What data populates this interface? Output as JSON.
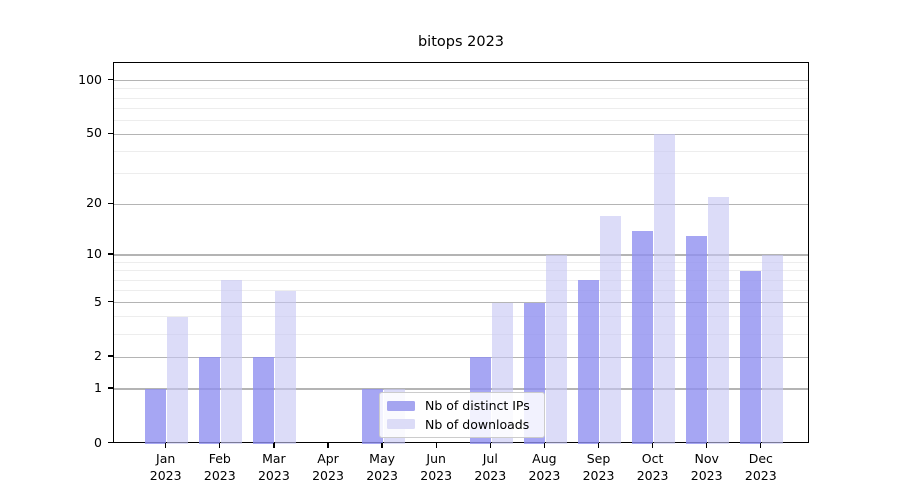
{
  "figure": {
    "background_color": "#ffffff"
  },
  "colors": {
    "ips_bar": "#a5a5f0",
    "downloads_bar": "#dcdcf7",
    "ips_bar_rgba": "rgba(144,144,240,0.8)",
    "downloads_bar_rgba": "rgba(198,198,243,0.62)",
    "major_gridline": "#b4b4b4",
    "minor_gridline": "#ededed",
    "axis": "#000000",
    "legend_border": "#cccccc"
  },
  "chart_data": {
    "type": "bar",
    "title": "bitops 2023",
    "categories": [
      "Jan 2023",
      "Feb 2023",
      "Mar 2023",
      "Apr 2023",
      "May 2023",
      "Jun 2023",
      "Jul 2023",
      "Aug 2023",
      "Sep 2023",
      "Oct 2023",
      "Nov 2023",
      "Dec 2023"
    ],
    "series": [
      {
        "name": "Nb of distinct IPs",
        "values": [
          1,
          2,
          2,
          0,
          1,
          0,
          2,
          5,
          7,
          14,
          13,
          8
        ]
      },
      {
        "name": "Nb of downloads",
        "values": [
          4,
          7,
          6,
          0,
          1,
          0,
          5,
          10,
          17,
          50,
          22,
          10
        ]
      }
    ],
    "xlabel": "",
    "ylabel": "",
    "yscale": "log1p",
    "y_major_ticks": [
      0,
      1,
      2,
      5,
      10,
      20,
      50,
      100
    ],
    "y_minor_gridlines": [
      3,
      4,
      6,
      7,
      8,
      9,
      30,
      40,
      60,
      70,
      80,
      90
    ],
    "ylim": [
      0,
      125
    ],
    "grid": true,
    "legend_position": "lower center"
  }
}
